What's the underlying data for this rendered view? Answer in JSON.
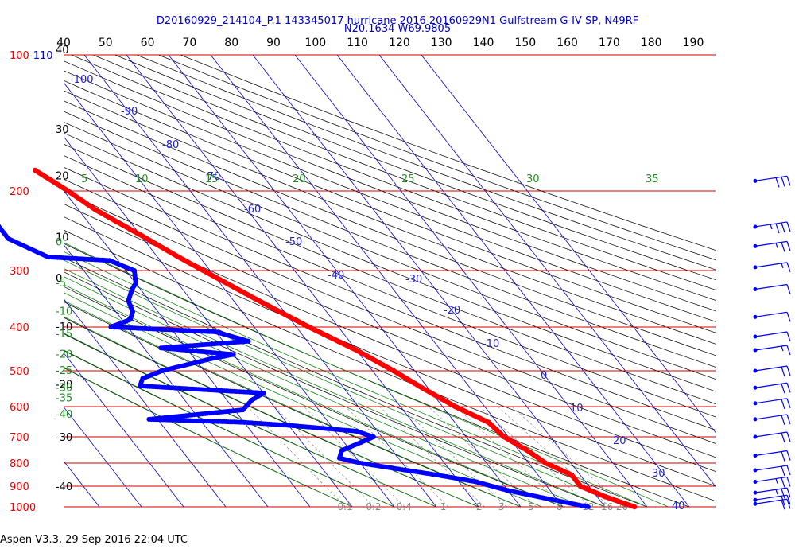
{
  "header": {
    "title_line1": "D20160929_214104_P.1 143345017 hurricane 2016 20160929N1 Gulfstream G-IV SP, N49RF",
    "title_line2": "N20.1634 W69.9805"
  },
  "footer": {
    "text": "Aspen V3.3, 29 Sep 2016  22:04 UTC"
  },
  "colors": {
    "temperature": "#ff0000",
    "dewpoint": "#0000ff",
    "pressure_lines": "#d00000",
    "isotherms": "#0000cc",
    "dry_adiabats": "#000000",
    "moist_adiabats": "#008000",
    "mixing_ratio": "#888888",
    "title": "#0000cc",
    "wind_barbs": "#0000ff"
  },
  "chart_data": {
    "type": "skew-t log-p",
    "pressure_axis": {
      "unit": "hPa",
      "ticks": [
        "100",
        "200",
        "300",
        "400",
        "500",
        "600",
        "700",
        "800",
        "900",
        "1000"
      ]
    },
    "pressure_levels_hpa": [
      100,
      200,
      300,
      400,
      500,
      600,
      700,
      800,
      900,
      1000
    ],
    "top_axis_ticks": [
      "40",
      "50",
      "60",
      "70",
      "80",
      "90",
      "100",
      "110",
      "120",
      "130",
      "140",
      "150",
      "160",
      "170",
      "180",
      "190"
    ],
    "left_axis_ticks": [
      {
        "label": "-110",
        "level": "100"
      },
      {
        "label": "40",
        "level": "100"
      },
      {
        "label": "30",
        "level": "150"
      },
      {
        "label": "20",
        "level": "190"
      },
      {
        "label": "10",
        "level": "260"
      },
      {
        "label": "0",
        "level": "320"
      },
      {
        "label": "-10",
        "level": "410"
      },
      {
        "label": "-20",
        "level": "550"
      },
      {
        "label": "-30",
        "level": "720"
      },
      {
        "label": "-40",
        "level": "925"
      }
    ],
    "left_green_labels": [
      "0",
      "-5",
      "-10",
      "-15",
      "-20",
      "-25",
      "-30",
      "-35",
      "-40"
    ],
    "top_green_labels": [
      "5",
      "10",
      "15",
      "20",
      "25",
      "30",
      "35"
    ],
    "isotherm_labels": [
      "-100",
      "-90",
      "-80",
      "-70",
      "-60",
      "-50",
      "-40",
      "-30",
      "-20",
      "-10",
      "0",
      "10",
      "20",
      "30",
      "40"
    ],
    "mixing_ratio_labels": [
      "0.1",
      "0.2",
      "0.4",
      "1",
      "2",
      "3",
      "5",
      "8",
      "12",
      "16",
      "20"
    ],
    "temperature_profile": [
      {
        "p": 180,
        "t": -53
      },
      {
        "p": 200,
        "t": -49
      },
      {
        "p": 220,
        "t": -46
      },
      {
        "p": 250,
        "t": -40
      },
      {
        "p": 280,
        "t": -35
      },
      {
        "p": 310,
        "t": -30
      },
      {
        "p": 350,
        "t": -24
      },
      {
        "p": 400,
        "t": -17
      },
      {
        "p": 450,
        "t": -10
      },
      {
        "p": 500,
        "t": -5
      },
      {
        "p": 550,
        "t": -1
      },
      {
        "p": 600,
        "t": 3
      },
      {
        "p": 650,
        "t": 8
      },
      {
        "p": 700,
        "t": 9
      },
      {
        "p": 750,
        "t": 12
      },
      {
        "p": 800,
        "t": 14
      },
      {
        "p": 850,
        "t": 18
      },
      {
        "p": 900,
        "t": 18
      },
      {
        "p": 950,
        "t": 22
      },
      {
        "p": 1000,
        "t": 27
      }
    ],
    "temperature_isolated_point": {
      "p": 155,
      "t": -60
    },
    "dewpoint_profile": [
      {
        "p": 210,
        "t": -68
      },
      {
        "p": 230,
        "t": -72
      },
      {
        "p": 255,
        "t": -72
      },
      {
        "p": 280,
        "t": -66
      },
      {
        "p": 285,
        "t": -52
      },
      {
        "p": 300,
        "t": -48
      },
      {
        "p": 320,
        "t": -50
      },
      {
        "p": 330,
        "t": -52
      },
      {
        "p": 350,
        "t": -55
      },
      {
        "p": 370,
        "t": -56
      },
      {
        "p": 385,
        "t": -58
      },
      {
        "p": 400,
        "t": -64
      },
      {
        "p": 410,
        "t": -40
      },
      {
        "p": 430,
        "t": -34
      },
      {
        "p": 445,
        "t": -56
      },
      {
        "p": 460,
        "t": -40
      },
      {
        "p": 470,
        "t": -46
      },
      {
        "p": 500,
        "t": -60
      },
      {
        "p": 520,
        "t": -66
      },
      {
        "p": 540,
        "t": -68
      },
      {
        "p": 560,
        "t": -40
      },
      {
        "p": 580,
        "t": -44
      },
      {
        "p": 610,
        "t": -48
      },
      {
        "p": 640,
        "t": -72
      },
      {
        "p": 650,
        "t": -50
      },
      {
        "p": 660,
        "t": -40
      },
      {
        "p": 680,
        "t": -25
      },
      {
        "p": 700,
        "t": -22
      },
      {
        "p": 720,
        "t": -26
      },
      {
        "p": 750,
        "t": -32
      },
      {
        "p": 780,
        "t": -34
      },
      {
        "p": 800,
        "t": -30
      },
      {
        "p": 850,
        "t": -14
      },
      {
        "p": 880,
        "t": -6
      },
      {
        "p": 920,
        "t": 0
      },
      {
        "p": 960,
        "t": 8
      },
      {
        "p": 1000,
        "t": 16
      }
    ],
    "wind_barbs": [
      {
        "p": 190,
        "speed_kt": 30
      },
      {
        "p": 240,
        "speed_kt": 35
      },
      {
        "p": 265,
        "speed_kt": 25
      },
      {
        "p": 295,
        "speed_kt": 15
      },
      {
        "p": 330,
        "speed_kt": 10
      },
      {
        "p": 380,
        "speed_kt": 10
      },
      {
        "p": 420,
        "speed_kt": 10
      },
      {
        "p": 450,
        "speed_kt": 15
      },
      {
        "p": 500,
        "speed_kt": 20
      },
      {
        "p": 545,
        "speed_kt": 20
      },
      {
        "p": 590,
        "speed_kt": 20
      },
      {
        "p": 640,
        "speed_kt": 20
      },
      {
        "p": 700,
        "speed_kt": 20
      },
      {
        "p": 770,
        "speed_kt": 20
      },
      {
        "p": 830,
        "speed_kt": 20
      },
      {
        "p": 880,
        "speed_kt": 25
      },
      {
        "p": 930,
        "speed_kt": 25
      },
      {
        "p": 965,
        "speed_kt": 20
      },
      {
        "p": 985,
        "speed_kt": 20
      }
    ]
  }
}
